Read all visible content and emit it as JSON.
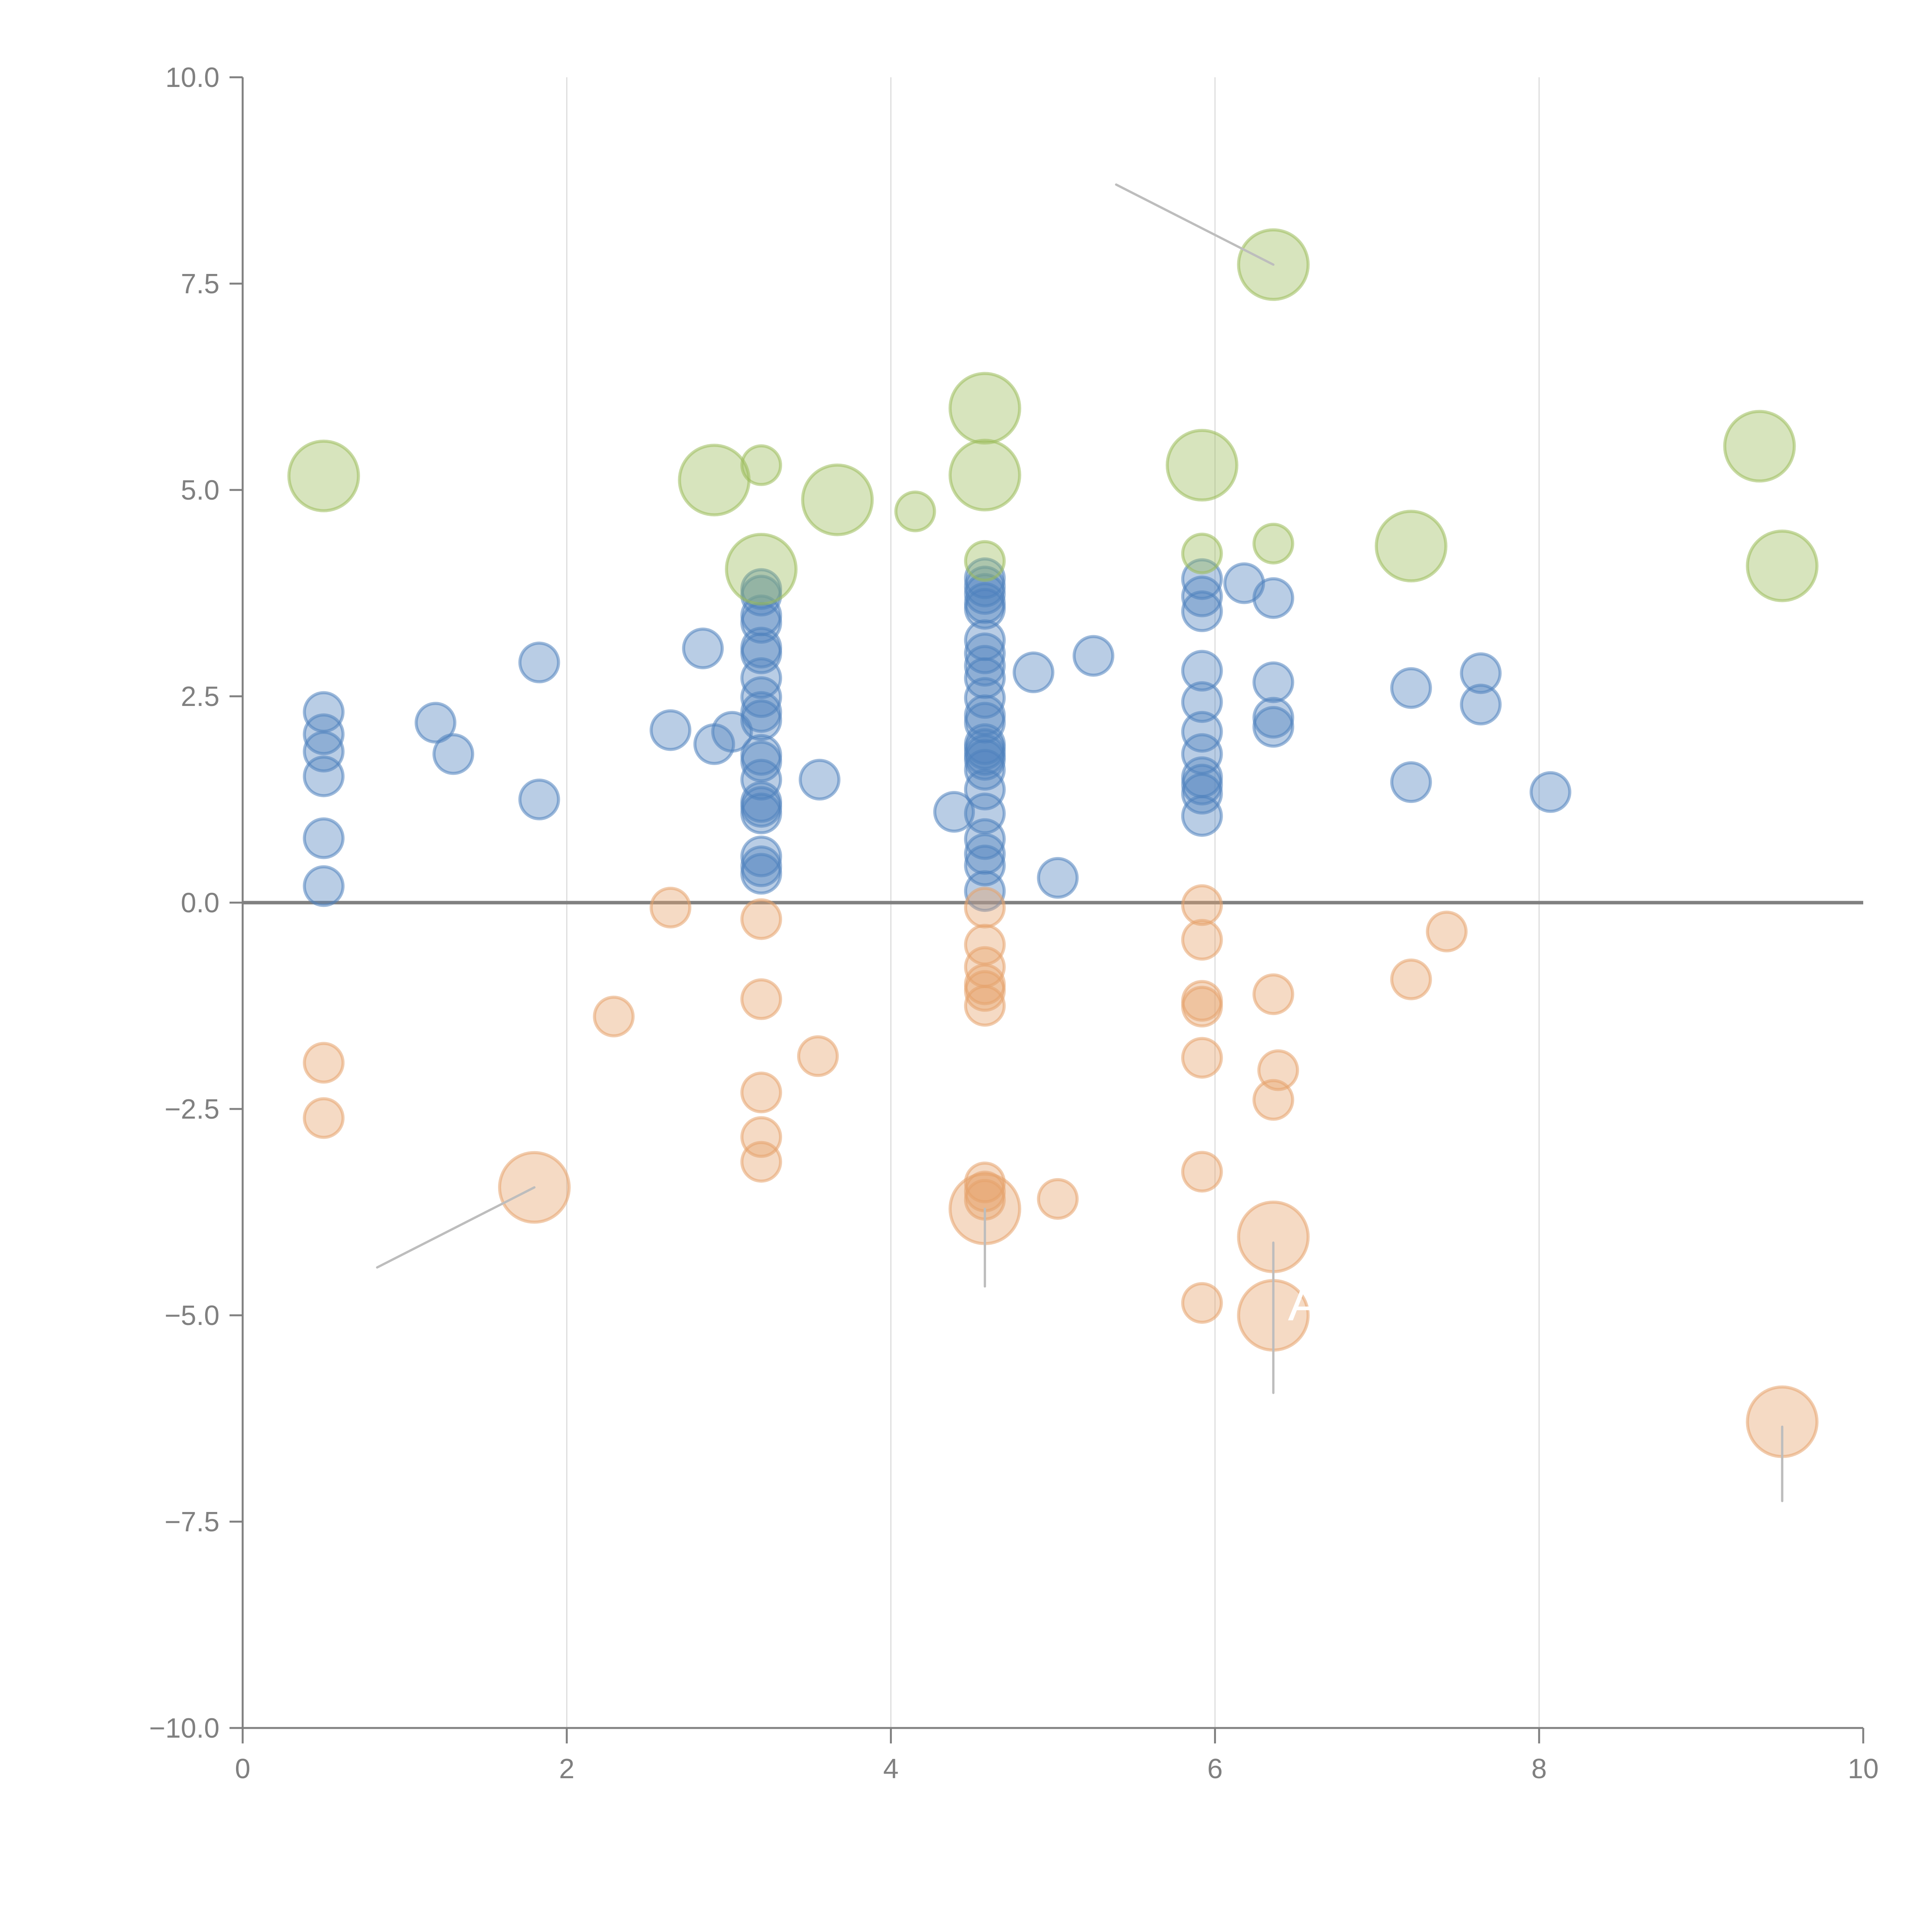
{
  "chart_data": {
    "type": "scatter",
    "subtype": "bubble",
    "title": "",
    "xlabel": "",
    "ylabel": "",
    "xlim": [
      0,
      10
    ],
    "ylim": [
      -10,
      10
    ],
    "grid": "vertical",
    "legend": "none",
    "x_ticks": [
      "0",
      "2",
      "4",
      "6",
      "8",
      "10"
    ],
    "y_ticks": [
      "10.0",
      "7.5",
      "5.0",
      "2.5",
      "0.0",
      "−2.5",
      "−5.0",
      "−7.5",
      "−10.0"
    ],
    "x_tick_values": [
      0,
      2,
      4,
      6,
      8,
      10
    ],
    "y_tick_values": [
      10,
      7.5,
      5,
      2.5,
      0,
      -2.5,
      -5,
      -7.5,
      -10
    ],
    "reference_line": {
      "axis": "y",
      "value": 0
    },
    "series": [
      {
        "name": "blue",
        "color": "#4f81bd",
        "points": [
          {
            "x": 0.5,
            "y": 2.31,
            "size": "small"
          },
          {
            "x": 0.5,
            "y": 2.04,
            "size": "small"
          },
          {
            "x": 0.5,
            "y": 1.83,
            "size": "small"
          },
          {
            "x": 0.5,
            "y": 1.53,
            "size": "small"
          },
          {
            "x": 0.5,
            "y": 0.78,
            "size": "small"
          },
          {
            "x": 0.5,
            "y": 0.2,
            "size": "small"
          },
          {
            "x": 1.19,
            "y": 2.18,
            "size": "small"
          },
          {
            "x": 1.3,
            "y": 1.8,
            "size": "small"
          },
          {
            "x": 1.83,
            "y": 2.91,
            "size": "small"
          },
          {
            "x": 1.83,
            "y": 1.25,
            "size": "small"
          },
          {
            "x": 2.64,
            "y": 2.09,
            "size": "small"
          },
          {
            "x": 2.84,
            "y": 3.08,
            "size": "small"
          },
          {
            "x": 2.91,
            "y": 1.92,
            "size": "small"
          },
          {
            "x": 3.02,
            "y": 2.07,
            "size": "small"
          },
          {
            "x": 3.2,
            "y": 3.8,
            "size": "small"
          },
          {
            "x": 3.2,
            "y": 3.72,
            "size": "small"
          },
          {
            "x": 3.2,
            "y": 3.48,
            "size": "small"
          },
          {
            "x": 3.2,
            "y": 3.39,
            "size": "small"
          },
          {
            "x": 3.2,
            "y": 3.09,
            "size": "small"
          },
          {
            "x": 3.2,
            "y": 3.02,
            "size": "small"
          },
          {
            "x": 3.2,
            "y": 2.72,
            "size": "small"
          },
          {
            "x": 3.2,
            "y": 2.49,
            "size": "small"
          },
          {
            "x": 3.2,
            "y": 2.31,
            "size": "small"
          },
          {
            "x": 3.2,
            "y": 2.21,
            "size": "small"
          },
          {
            "x": 3.2,
            "y": 1.79,
            "size": "small"
          },
          {
            "x": 3.2,
            "y": 1.71,
            "size": "small"
          },
          {
            "x": 3.2,
            "y": 1.49,
            "size": "small"
          },
          {
            "x": 3.2,
            "y": 1.22,
            "size": "small"
          },
          {
            "x": 3.2,
            "y": 1.16,
            "size": "small"
          },
          {
            "x": 3.2,
            "y": 1.08,
            "size": "small"
          },
          {
            "x": 3.2,
            "y": 0.56,
            "size": "small"
          },
          {
            "x": 3.2,
            "y": 0.44,
            "size": "small"
          },
          {
            "x": 3.2,
            "y": 0.35,
            "size": "small"
          },
          {
            "x": 3.56,
            "y": 1.49,
            "size": "small"
          },
          {
            "x": 4.39,
            "y": 1.1,
            "size": "small"
          },
          {
            "x": 4.58,
            "y": 3.93,
            "size": "small"
          },
          {
            "x": 4.58,
            "y": 3.83,
            "size": "small"
          },
          {
            "x": 4.58,
            "y": 3.74,
            "size": "small"
          },
          {
            "x": 4.58,
            "y": 3.63,
            "size": "small"
          },
          {
            "x": 4.58,
            "y": 3.56,
            "size": "small"
          },
          {
            "x": 4.58,
            "y": 3.18,
            "size": "small"
          },
          {
            "x": 4.58,
            "y": 3.02,
            "size": "small"
          },
          {
            "x": 4.58,
            "y": 2.87,
            "size": "small"
          },
          {
            "x": 4.58,
            "y": 2.72,
            "size": "small"
          },
          {
            "x": 4.58,
            "y": 2.48,
            "size": "small"
          },
          {
            "x": 4.58,
            "y": 2.27,
            "size": "small"
          },
          {
            "x": 4.58,
            "y": 2.18,
            "size": "small"
          },
          {
            "x": 4.58,
            "y": 1.92,
            "size": "small"
          },
          {
            "x": 4.58,
            "y": 1.86,
            "size": "small"
          },
          {
            "x": 4.58,
            "y": 1.79,
            "size": "small"
          },
          {
            "x": 4.58,
            "y": 1.73,
            "size": "small"
          },
          {
            "x": 4.58,
            "y": 1.61,
            "size": "small"
          },
          {
            "x": 4.58,
            "y": 1.37,
            "size": "small"
          },
          {
            "x": 4.58,
            "y": 1.08,
            "size": "small"
          },
          {
            "x": 4.58,
            "y": 0.77,
            "size": "small"
          },
          {
            "x": 4.58,
            "y": 0.59,
            "size": "small"
          },
          {
            "x": 4.58,
            "y": 0.45,
            "size": "small"
          },
          {
            "x": 4.58,
            "y": 0.14,
            "size": "small"
          },
          {
            "x": 4.88,
            "y": 2.79,
            "size": "small"
          },
          {
            "x": 5.03,
            "y": 0.3,
            "size": "small"
          },
          {
            "x": 5.25,
            "y": 2.99,
            "size": "small"
          },
          {
            "x": 5.92,
            "y": 3.92,
            "size": "small"
          },
          {
            "x": 5.92,
            "y": 3.71,
            "size": "small"
          },
          {
            "x": 5.92,
            "y": 3.53,
            "size": "small"
          },
          {
            "x": 5.92,
            "y": 2.81,
            "size": "small"
          },
          {
            "x": 5.92,
            "y": 2.43,
            "size": "small"
          },
          {
            "x": 5.92,
            "y": 2.07,
            "size": "small"
          },
          {
            "x": 5.92,
            "y": 1.8,
            "size": "small"
          },
          {
            "x": 5.92,
            "y": 1.52,
            "size": "small"
          },
          {
            "x": 5.92,
            "y": 1.43,
            "size": "small"
          },
          {
            "x": 5.92,
            "y": 1.32,
            "size": "small"
          },
          {
            "x": 5.92,
            "y": 1.05,
            "size": "small"
          },
          {
            "x": 6.18,
            "y": 3.87,
            "size": "small"
          },
          {
            "x": 6.36,
            "y": 3.69,
            "size": "small"
          },
          {
            "x": 6.36,
            "y": 2.67,
            "size": "small"
          },
          {
            "x": 6.36,
            "y": 2.24,
            "size": "small"
          },
          {
            "x": 6.36,
            "y": 2.13,
            "size": "small"
          },
          {
            "x": 7.21,
            "y": 2.6,
            "size": "small"
          },
          {
            "x": 7.21,
            "y": 1.46,
            "size": "small"
          },
          {
            "x": 7.64,
            "y": 2.78,
            "size": "small"
          },
          {
            "x": 7.64,
            "y": 2.4,
            "size": "small"
          },
          {
            "x": 8.07,
            "y": 1.34,
            "size": "small"
          }
        ]
      },
      {
        "name": "green",
        "color": "#9bbb59",
        "points": [
          {
            "x": 0.5,
            "y": 5.17,
            "size": "large"
          },
          {
            "x": 2.91,
            "y": 5.12,
            "size": "large"
          },
          {
            "x": 3.2,
            "y": 5.3,
            "size": "small"
          },
          {
            "x": 3.67,
            "y": 4.88,
            "size": "large"
          },
          {
            "x": 4.15,
            "y": 4.74,
            "size": "small"
          },
          {
            "x": 3.2,
            "y": 4.04,
            "size": "large"
          },
          {
            "x": 4.58,
            "y": 5.99,
            "size": "large"
          },
          {
            "x": 4.58,
            "y": 5.18,
            "size": "large"
          },
          {
            "x": 4.58,
            "y": 4.14,
            "size": "small"
          },
          {
            "x": 5.92,
            "y": 5.3,
            "size": "large"
          },
          {
            "x": 5.92,
            "y": 4.23,
            "size": "small"
          },
          {
            "x": 6.36,
            "y": 4.35,
            "size": "small"
          },
          {
            "x": 6.36,
            "y": 7.73,
            "size": "large"
          },
          {
            "x": 7.21,
            "y": 4.32,
            "size": "large"
          },
          {
            "x": 9.36,
            "y": 5.53,
            "size": "large"
          },
          {
            "x": 9.5,
            "y": 4.08,
            "size": "large"
          }
        ]
      },
      {
        "name": "orange",
        "color": "#e6a36b",
        "points": [
          {
            "x": 0.5,
            "y": -1.94,
            "size": "small"
          },
          {
            "x": 0.5,
            "y": -2.61,
            "size": "small"
          },
          {
            "x": 1.8,
            "y": -3.45,
            "size": "large"
          },
          {
            "x": 2.29,
            "y": -1.38,
            "size": "small"
          },
          {
            "x": 2.64,
            "y": -0.06,
            "size": "small"
          },
          {
            "x": 3.2,
            "y": -0.2,
            "size": "small"
          },
          {
            "x": 3.2,
            "y": -1.17,
            "size": "small"
          },
          {
            "x": 3.2,
            "y": -2.3,
            "size": "small"
          },
          {
            "x": 3.2,
            "y": -2.84,
            "size": "small"
          },
          {
            "x": 3.2,
            "y": -3.14,
            "size": "small"
          },
          {
            "x": 3.55,
            "y": -1.86,
            "size": "small"
          },
          {
            "x": 4.58,
            "y": -0.06,
            "size": "small"
          },
          {
            "x": 4.58,
            "y": -0.51,
            "size": "small"
          },
          {
            "x": 4.58,
            "y": -0.78,
            "size": "small"
          },
          {
            "x": 4.58,
            "y": -0.99,
            "size": "small"
          },
          {
            "x": 4.58,
            "y": -1.07,
            "size": "small"
          },
          {
            "x": 4.58,
            "y": -1.25,
            "size": "small"
          },
          {
            "x": 4.58,
            "y": -3.39,
            "size": "small"
          },
          {
            "x": 4.58,
            "y": -3.5,
            "size": "small"
          },
          {
            "x": 4.58,
            "y": -3.6,
            "size": "small"
          },
          {
            "x": 4.58,
            "y": -3.71,
            "size": "large"
          },
          {
            "x": 5.03,
            "y": -3.59,
            "size": "small"
          },
          {
            "x": 5.92,
            "y": -0.03,
            "size": "small"
          },
          {
            "x": 5.92,
            "y": -0.45,
            "size": "small"
          },
          {
            "x": 5.92,
            "y": -1.19,
            "size": "small"
          },
          {
            "x": 5.92,
            "y": -1.26,
            "size": "small"
          },
          {
            "x": 5.92,
            "y": -1.88,
            "size": "small"
          },
          {
            "x": 5.92,
            "y": -3.26,
            "size": "small"
          },
          {
            "x": 5.92,
            "y": -4.85,
            "size": "small"
          },
          {
            "x": 6.36,
            "y": -1.11,
            "size": "small"
          },
          {
            "x": 6.39,
            "y": -2.03,
            "size": "small"
          },
          {
            "x": 6.36,
            "y": -2.39,
            "size": "small"
          },
          {
            "x": 6.36,
            "y": -4.05,
            "size": "large"
          },
          {
            "x": 6.36,
            "y": -5.0,
            "size": "large"
          },
          {
            "x": 7.21,
            "y": -0.93,
            "size": "small"
          },
          {
            "x": 7.43,
            "y": -0.35,
            "size": "small"
          },
          {
            "x": 9.5,
            "y": -6.29,
            "size": "large"
          }
        ]
      }
    ],
    "annotations": [
      {
        "from": {
          "x": 6.36,
          "y": 7.73
        },
        "to": {
          "x": 5.39,
          "y": 8.7
        },
        "text": "",
        "color": "#bdbdbd"
      },
      {
        "from": {
          "x": 1.8,
          "y": -3.45
        },
        "to": {
          "x": 0.83,
          "y": -4.42
        },
        "text": "",
        "color": "#bdbdbd"
      },
      {
        "from": {
          "x": 4.58,
          "y": -3.71
        },
        "to": {
          "x": 4.58,
          "y": -4.65
        },
        "text": "",
        "color": "#bdbdbd"
      },
      {
        "from": {
          "x": 6.36,
          "y": -4.12
        },
        "to": {
          "x": 6.36,
          "y": -5.94
        },
        "text": "A",
        "text_at": {
          "x": 6.45,
          "y": -4.85
        },
        "text_color": "#ffffff",
        "color": "#bdbdbd"
      },
      {
        "from": {
          "x": 9.5,
          "y": -6.35
        },
        "to": {
          "x": 9.5,
          "y": -7.25
        },
        "text": "",
        "color": "#bdbdbd"
      }
    ]
  }
}
